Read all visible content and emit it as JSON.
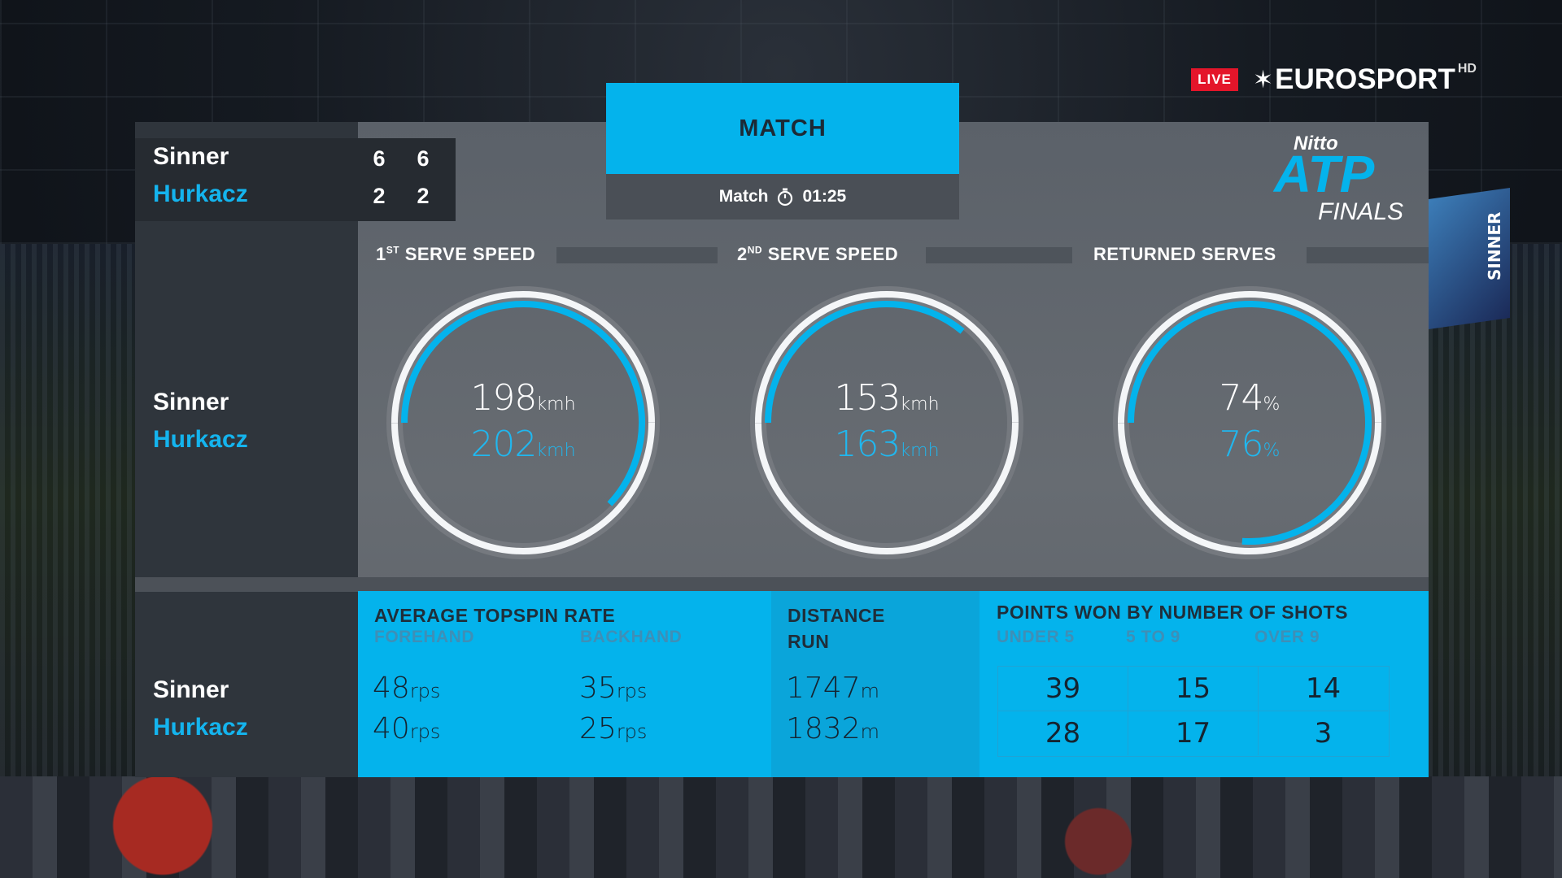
{
  "broadcast": {
    "live_label": "LIVE",
    "channel": "EUROSPORT",
    "channel_suffix": "HD"
  },
  "jumbotron": {
    "text": "SINNER"
  },
  "scoreboard": {
    "players": [
      {
        "name": "Sinner",
        "sets": [
          "6",
          "6"
        ]
      },
      {
        "name": "Hurkacz",
        "sets": [
          "2",
          "2"
        ]
      }
    ]
  },
  "match": {
    "tab_label": "MATCH",
    "sub_label": "Match",
    "timer_icon": "stopwatch-icon",
    "duration": "01:25"
  },
  "logo": {
    "brand": "Nitto",
    "name": "ATP",
    "event": "FINALS"
  },
  "rings_section": {
    "players": [
      "Sinner",
      "Hurkacz"
    ],
    "stats": [
      {
        "title_prefix": "1",
        "title_sup": "ST",
        "title_rest": " SERVE SPEED",
        "p1_value": "198",
        "p1_unit": "kmh",
        "p2_value": "202",
        "p2_unit": "kmh",
        "p2_fraction": 0.62
      },
      {
        "title_prefix": "2",
        "title_sup": "ND",
        "title_rest": " SERVE SPEED",
        "p1_value": "153",
        "p1_unit": "kmh",
        "p2_value": "163",
        "p2_unit": "kmh",
        "p2_fraction": 0.36
      },
      {
        "title_prefix": "",
        "title_sup": "",
        "title_rest": "RETURNED SERVES",
        "p1_value": "74",
        "p1_unit": "%",
        "p2_value": "76",
        "p2_unit": "%",
        "p2_fraction": 0.76
      }
    ]
  },
  "bottom": {
    "players": [
      "Sinner",
      "Hurkacz"
    ],
    "topspin": {
      "title": "AVERAGE TOPSPIN RATE",
      "forehand_label": "FOREHAND",
      "backhand_label": "BACKHAND",
      "forehand": [
        {
          "value": "48",
          "unit": "rps"
        },
        {
          "value": "40",
          "unit": "rps"
        }
      ],
      "backhand": [
        {
          "value": "35",
          "unit": "rps"
        },
        {
          "value": "25",
          "unit": "rps"
        }
      ]
    },
    "distance": {
      "title_line1": "DISTANCE",
      "title_line2": "RUN",
      "values": [
        {
          "value": "1747",
          "unit": "m"
        },
        {
          "value": "1832",
          "unit": "m"
        }
      ]
    },
    "points": {
      "title": "POINTS WON BY NUMBER OF SHOTS",
      "columns": [
        "UNDER 5",
        "5 TO 9",
        "OVER 9"
      ],
      "rows": [
        [
          "39",
          "15",
          "14"
        ],
        [
          "28",
          "17",
          "3"
        ]
      ]
    }
  },
  "colors": {
    "accent": "#04b3ec",
    "player2": "#14b4ee",
    "live": "#e4152a",
    "panel": "#62676e"
  }
}
